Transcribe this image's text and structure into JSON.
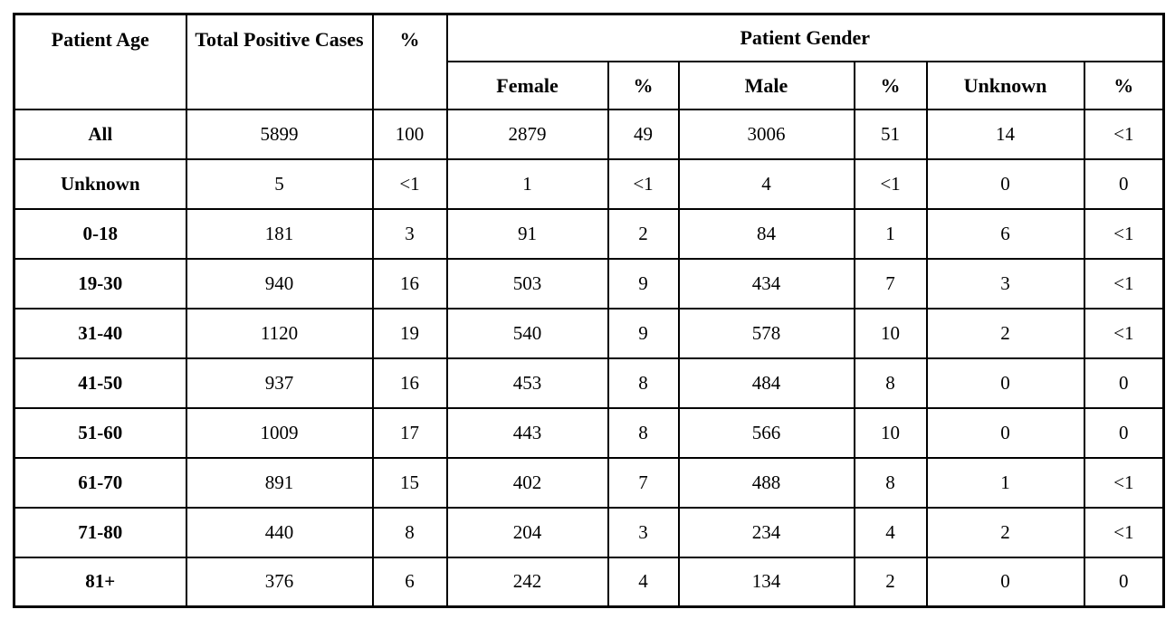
{
  "table": {
    "border_color": "#000000",
    "text_color": "#000000",
    "background_color": "#ffffff",
    "header": {
      "patient_age": "Patient Age",
      "total_positive_cases": "Total Positive Cases",
      "percent": "%",
      "patient_gender": "Patient Gender",
      "sub_columns": [
        "Female",
        "%",
        "Male",
        "%",
        "Unknown",
        "%"
      ]
    },
    "rows": [
      {
        "age": "All",
        "total": "5899",
        "total_pct": "100",
        "female": "2879",
        "female_pct": "49",
        "male": "3006",
        "male_pct": "51",
        "unknown": "14",
        "unknown_pct": "<1"
      },
      {
        "age": "Unknown",
        "total": "5",
        "total_pct": "<1",
        "female": "1",
        "female_pct": "<1",
        "male": "4",
        "male_pct": "<1",
        "unknown": "0",
        "unknown_pct": "0"
      },
      {
        "age": "0-18",
        "total": "181",
        "total_pct": "3",
        "female": "91",
        "female_pct": "2",
        "male": "84",
        "male_pct": "1",
        "unknown": "6",
        "unknown_pct": "<1"
      },
      {
        "age": "19-30",
        "total": "940",
        "total_pct": "16",
        "female": "503",
        "female_pct": "9",
        "male": "434",
        "male_pct": "7",
        "unknown": "3",
        "unknown_pct": "<1"
      },
      {
        "age": "31-40",
        "total": "1120",
        "total_pct": "19",
        "female": "540",
        "female_pct": "9",
        "male": "578",
        "male_pct": "10",
        "unknown": "2",
        "unknown_pct": "<1"
      },
      {
        "age": "41-50",
        "total": "937",
        "total_pct": "16",
        "female": "453",
        "female_pct": "8",
        "male": "484",
        "male_pct": "8",
        "unknown": "0",
        "unknown_pct": "0"
      },
      {
        "age": "51-60",
        "total": "1009",
        "total_pct": "17",
        "female": "443",
        "female_pct": "8",
        "male": "566",
        "male_pct": "10",
        "unknown": "0",
        "unknown_pct": "0"
      },
      {
        "age": "61-70",
        "total": "891",
        "total_pct": "15",
        "female": "402",
        "female_pct": "7",
        "male": "488",
        "male_pct": "8",
        "unknown": "1",
        "unknown_pct": "<1"
      },
      {
        "age": "71-80",
        "total": "440",
        "total_pct": "8",
        "female": "204",
        "female_pct": "3",
        "male": "234",
        "male_pct": "4",
        "unknown": "2",
        "unknown_pct": "<1"
      },
      {
        "age": "81+",
        "total": "376",
        "total_pct": "6",
        "female": "242",
        "female_pct": "4",
        "male": "134",
        "male_pct": "2",
        "unknown": "0",
        "unknown_pct": "0"
      }
    ]
  },
  "chart_data": {
    "type": "table",
    "title": "",
    "columns": [
      "Patient Age",
      "Total Positive Cases",
      "%",
      "Female",
      "%",
      "Male",
      "%",
      "Unknown",
      "%"
    ],
    "column_groups": [
      {
        "label": "Patient Gender",
        "spans": [
          "Female",
          "%",
          "Male",
          "%",
          "Unknown",
          "%"
        ]
      }
    ],
    "rows": [
      [
        "All",
        "5899",
        "100",
        "2879",
        "49",
        "3006",
        "51",
        "14",
        "<1"
      ],
      [
        "Unknown",
        "5",
        "<1",
        "1",
        "<1",
        "4",
        "<1",
        "0",
        "0"
      ],
      [
        "0-18",
        "181",
        "3",
        "91",
        "2",
        "84",
        "1",
        "6",
        "<1"
      ],
      [
        "19-30",
        "940",
        "16",
        "503",
        "9",
        "434",
        "7",
        "3",
        "<1"
      ],
      [
        "31-40",
        "1120",
        "19",
        "540",
        "9",
        "578",
        "10",
        "2",
        "<1"
      ],
      [
        "41-50",
        "937",
        "16",
        "453",
        "8",
        "484",
        "8",
        "0",
        "0"
      ],
      [
        "51-60",
        "1009",
        "17",
        "443",
        "8",
        "566",
        "10",
        "0",
        "0"
      ],
      [
        "61-70",
        "891",
        "15",
        "402",
        "7",
        "488",
        "8",
        "1",
        "<1"
      ],
      [
        "71-80",
        "440",
        "8",
        "204",
        "3",
        "234",
        "4",
        "2",
        "<1"
      ],
      [
        "81+",
        "376",
        "6",
        "242",
        "4",
        "134",
        "2",
        "0",
        "0"
      ]
    ]
  }
}
